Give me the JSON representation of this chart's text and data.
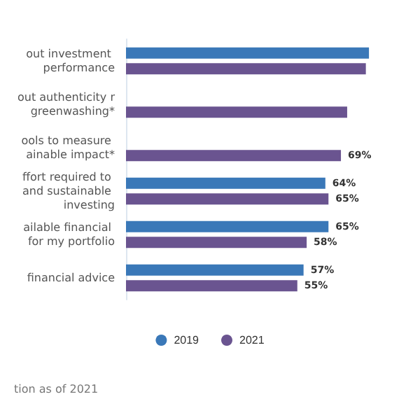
{
  "chart_data": {
    "type": "bar",
    "orientation": "horizontal",
    "categories": [
      "out investment performance",
      "out authenticity r greenwashing*",
      "ools to measure ainable impact*",
      "ffort required to and sustainable investing",
      "ailable financial for my portfolio",
      "financial advice"
    ],
    "series": [
      {
        "name": "2019",
        "color": "#3a78b8",
        "values": [
          78,
          null,
          null,
          64,
          65,
          57
        ],
        "value_labels": [
          null,
          null,
          null,
          "64%",
          "65%",
          "57%"
        ]
      },
      {
        "name": "2021",
        "color": "#6a5490",
        "values": [
          77,
          71,
          69,
          65,
          58,
          55
        ],
        "value_labels": [
          null,
          null,
          "69%",
          "65%",
          "58%",
          "55%"
        ]
      }
    ],
    "legend": "bottom",
    "grid": false,
    "annotations": [
      "tion as of 2021"
    ]
  }
}
